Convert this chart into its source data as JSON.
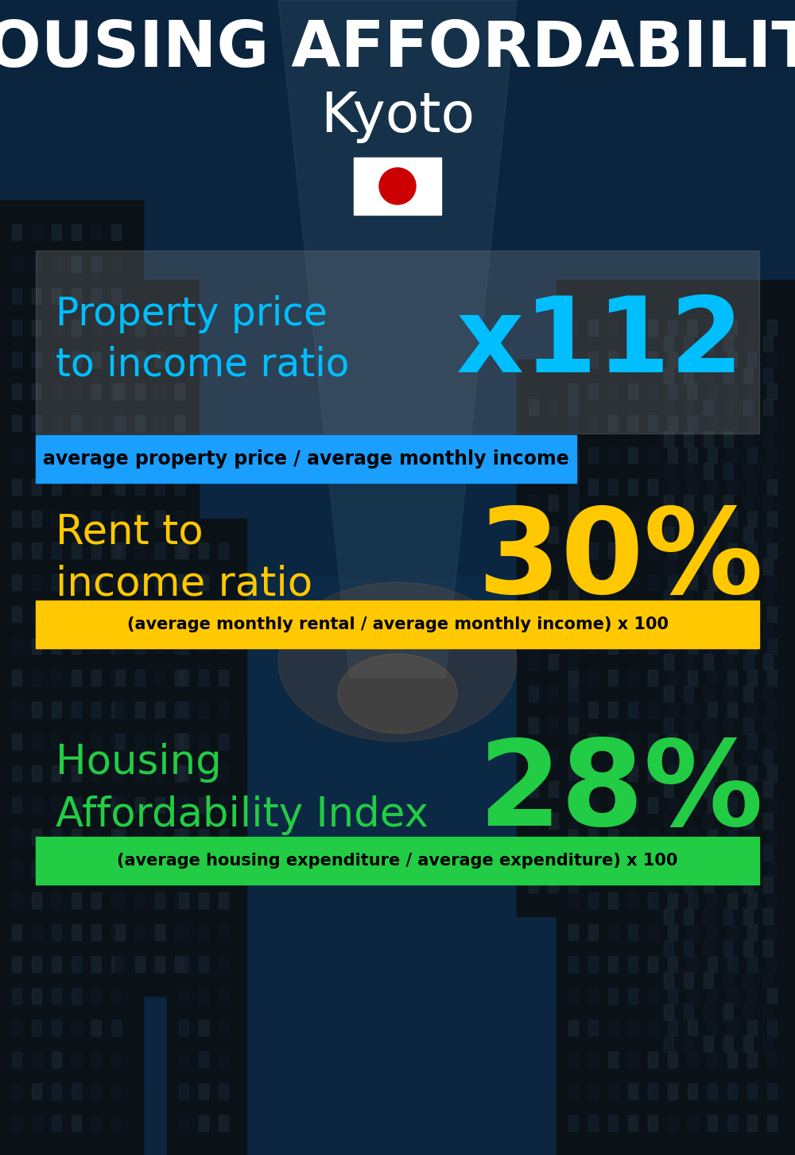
{
  "title_line1": "HOUSING AFFORDABILITY",
  "title_line2": "Kyoto",
  "bg_color": "#0d1820",
  "section1_label": "Property price\nto income ratio",
  "section1_value": "x112",
  "section1_label_color": "#00bfff",
  "section1_value_color": "#00bfff",
  "section1_subtext": "average property price / average monthly income",
  "section1_sub_bg": "#1a9fff",
  "section1_sub_text_color": "#000000",
  "section2_label": "Rent to\nincome ratio",
  "section2_value": "30%",
  "section2_label_color": "#ffc800",
  "section2_value_color": "#ffc800",
  "section2_subtext": "(average monthly rental / average monthly income) x 100",
  "section2_sub_bg": "#ffc800",
  "section2_sub_text_color": "#000000",
  "section3_label": "Housing\nAffordability Index",
  "section3_value": "28%",
  "section3_label_color": "#22cc44",
  "section3_value_color": "#22cc44",
  "section3_subtext": "(average housing expenditure / average expenditure) x 100",
  "section3_sub_bg": "#22cc44",
  "section3_sub_text_color": "#000000",
  "flag_bg": "#ffffff",
  "flag_circle_color": "#cc0000"
}
